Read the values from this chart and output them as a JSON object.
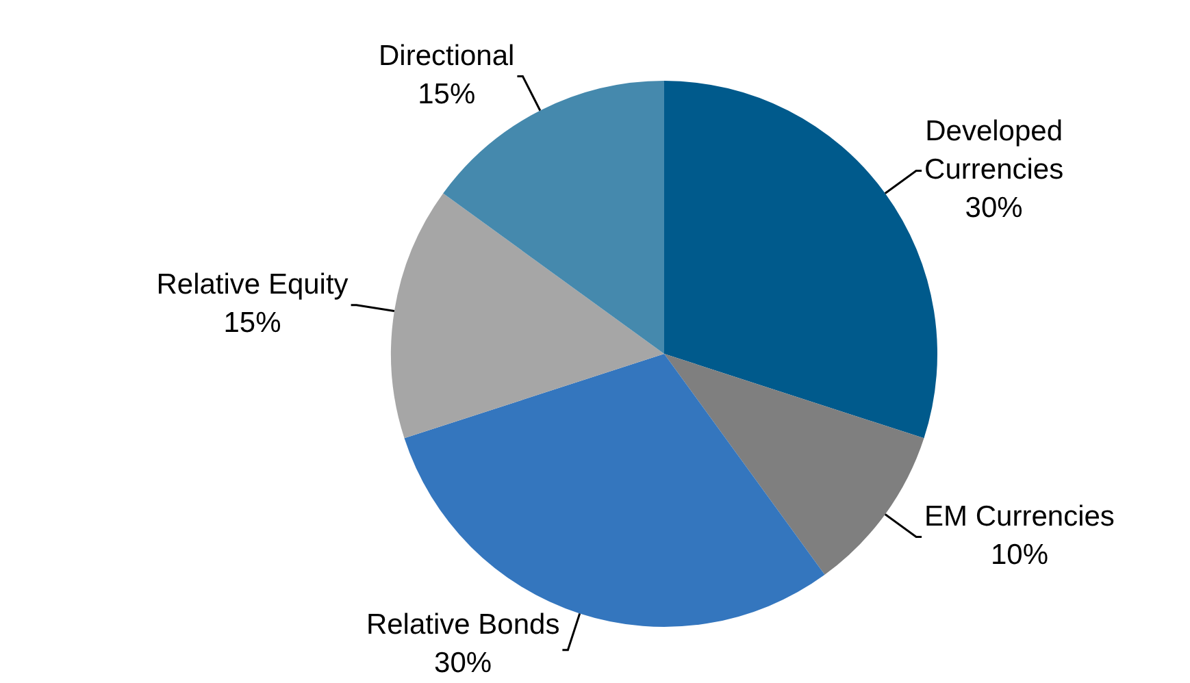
{
  "chart_data": {
    "type": "pie",
    "categories": [
      "Developed Currencies",
      "EM Currencies",
      "Relative Bonds",
      "Relative Equity",
      "Directional"
    ],
    "values": [
      30,
      10,
      30,
      15,
      15
    ],
    "colors": [
      "#005a8c",
      "#7f7f7f",
      "#3476be",
      "#a6a6a6",
      "#4589ad"
    ],
    "value_labels": [
      "30%",
      "10%",
      "30%",
      "15%",
      "15%"
    ],
    "legend": false
  }
}
